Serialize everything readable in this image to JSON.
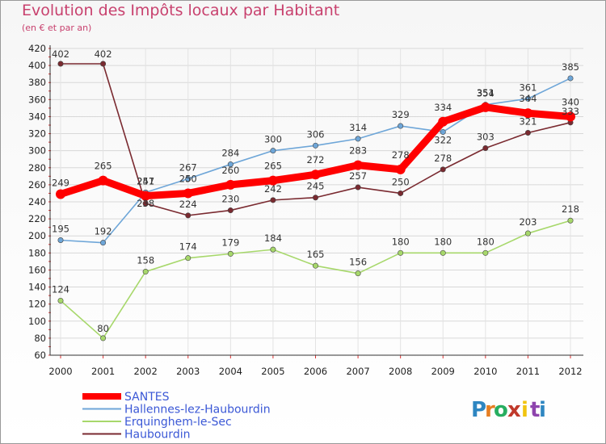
{
  "title": "Evolution des Impôts locaux par Habitant",
  "subtitle": "(en € et par an)",
  "logo": {
    "letters": [
      "P",
      "r",
      "o",
      "x",
      "i",
      "t",
      "i"
    ],
    "colors": [
      "#2e86c1",
      "#e67e22",
      "#27ae60",
      "#c0392b",
      "#f1c40f",
      "#8e44ad",
      "#2e86c1"
    ]
  },
  "chart_data": {
    "type": "line",
    "x": [
      "2000",
      "2001",
      "2002",
      "2003",
      "2004",
      "2005",
      "2006",
      "2007",
      "2008",
      "2009",
      "2010",
      "2011",
      "2012"
    ],
    "ylim": [
      60,
      420
    ],
    "yticks": [
      60,
      80,
      100,
      120,
      140,
      160,
      180,
      200,
      220,
      240,
      260,
      280,
      300,
      320,
      340,
      360,
      380,
      400,
      420
    ],
    "grid": true,
    "legend_position": "bottom-left",
    "series": [
      {
        "name": "SANTES",
        "color": "#ff0000",
        "values": [
          249,
          265,
          247,
          250,
          260,
          265,
          272,
          283,
          278,
          334,
          351,
          344,
          340
        ]
      },
      {
        "name": "Hallennes-lez-Haubourdin",
        "color": "#6ea6d8",
        "values": [
          195,
          192,
          251,
          267,
          284,
          300,
          306,
          314,
          329,
          322,
          354,
          361,
          385
        ]
      },
      {
        "name": "Erquinghem-le-Sec",
        "color": "#a7d86b",
        "values": [
          124,
          80,
          158,
          174,
          179,
          184,
          165,
          156,
          180,
          180,
          180,
          203,
          218
        ]
      },
      {
        "name": "Haubourdin",
        "color": "#7a2a30",
        "values": [
          402,
          402,
          238,
          224,
          230,
          242,
          245,
          257,
          250,
          278,
          303,
          321,
          333
        ]
      }
    ]
  }
}
